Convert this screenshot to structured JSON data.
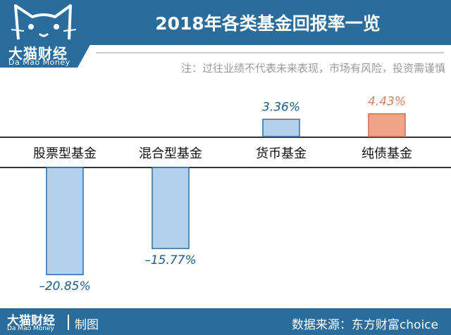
{
  "header": {
    "brand_cn": "大猫财经",
    "brand_en": "Da Mao Money",
    "title": "2018年各类基金回报率一览",
    "note": "注：过往业绩不代表未来表现，市场有风险，投资需谨慎"
  },
  "chart_data": {
    "type": "bar",
    "title": "2018年各类基金回报率一览",
    "categories": [
      "股票型基金",
      "混合型基金",
      "货币基金",
      "纯债基金"
    ],
    "series": [
      {
        "values": [
          -20.85,
          -15.77,
          3.36,
          4.43
        ]
      }
    ],
    "value_labels": [
      "–20.85%",
      "–15.77%",
      "3.36%",
      "4.43%"
    ],
    "unit": "%",
    "ylim": [
      -22,
      6
    ],
    "grid": false,
    "colors": {
      "negative_fill": "#b3d1ec",
      "negative_stroke": "#2f6da3",
      "money_fill": "#b3d1ec",
      "bond_fill": "#f2a488",
      "bond_stroke": "#c96f4f",
      "bond_label": "#d4825f",
      "label_dark": "#1e5a86"
    }
  },
  "footer": {
    "brand_cn": "大猫财经",
    "brand_en": "Da Mao Money",
    "made_by": "制图",
    "source": "数据来源：东方财富choice"
  }
}
